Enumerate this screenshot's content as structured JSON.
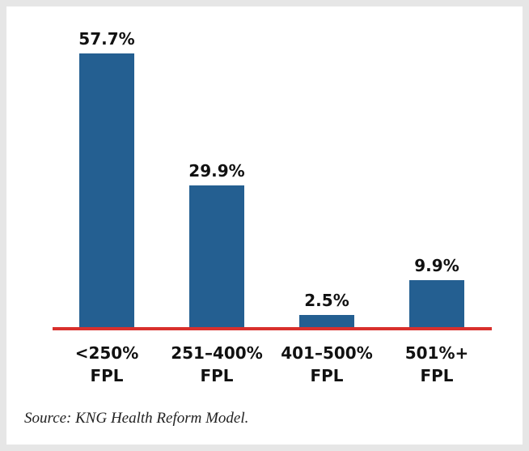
{
  "chart_data": {
    "type": "bar",
    "categories": [
      "<250% FPL",
      "251–400% FPL",
      "401–500% FPL",
      "501%+ FPL"
    ],
    "values": [
      57.7,
      29.9,
      2.5,
      9.9
    ],
    "value_labels": [
      "57.7%",
      "29.9%",
      "2.5%",
      "9.9%"
    ],
    "color": "#245f91",
    "baseline_color": "#d9302c",
    "source": "Source: KNG Health Reform Model."
  }
}
